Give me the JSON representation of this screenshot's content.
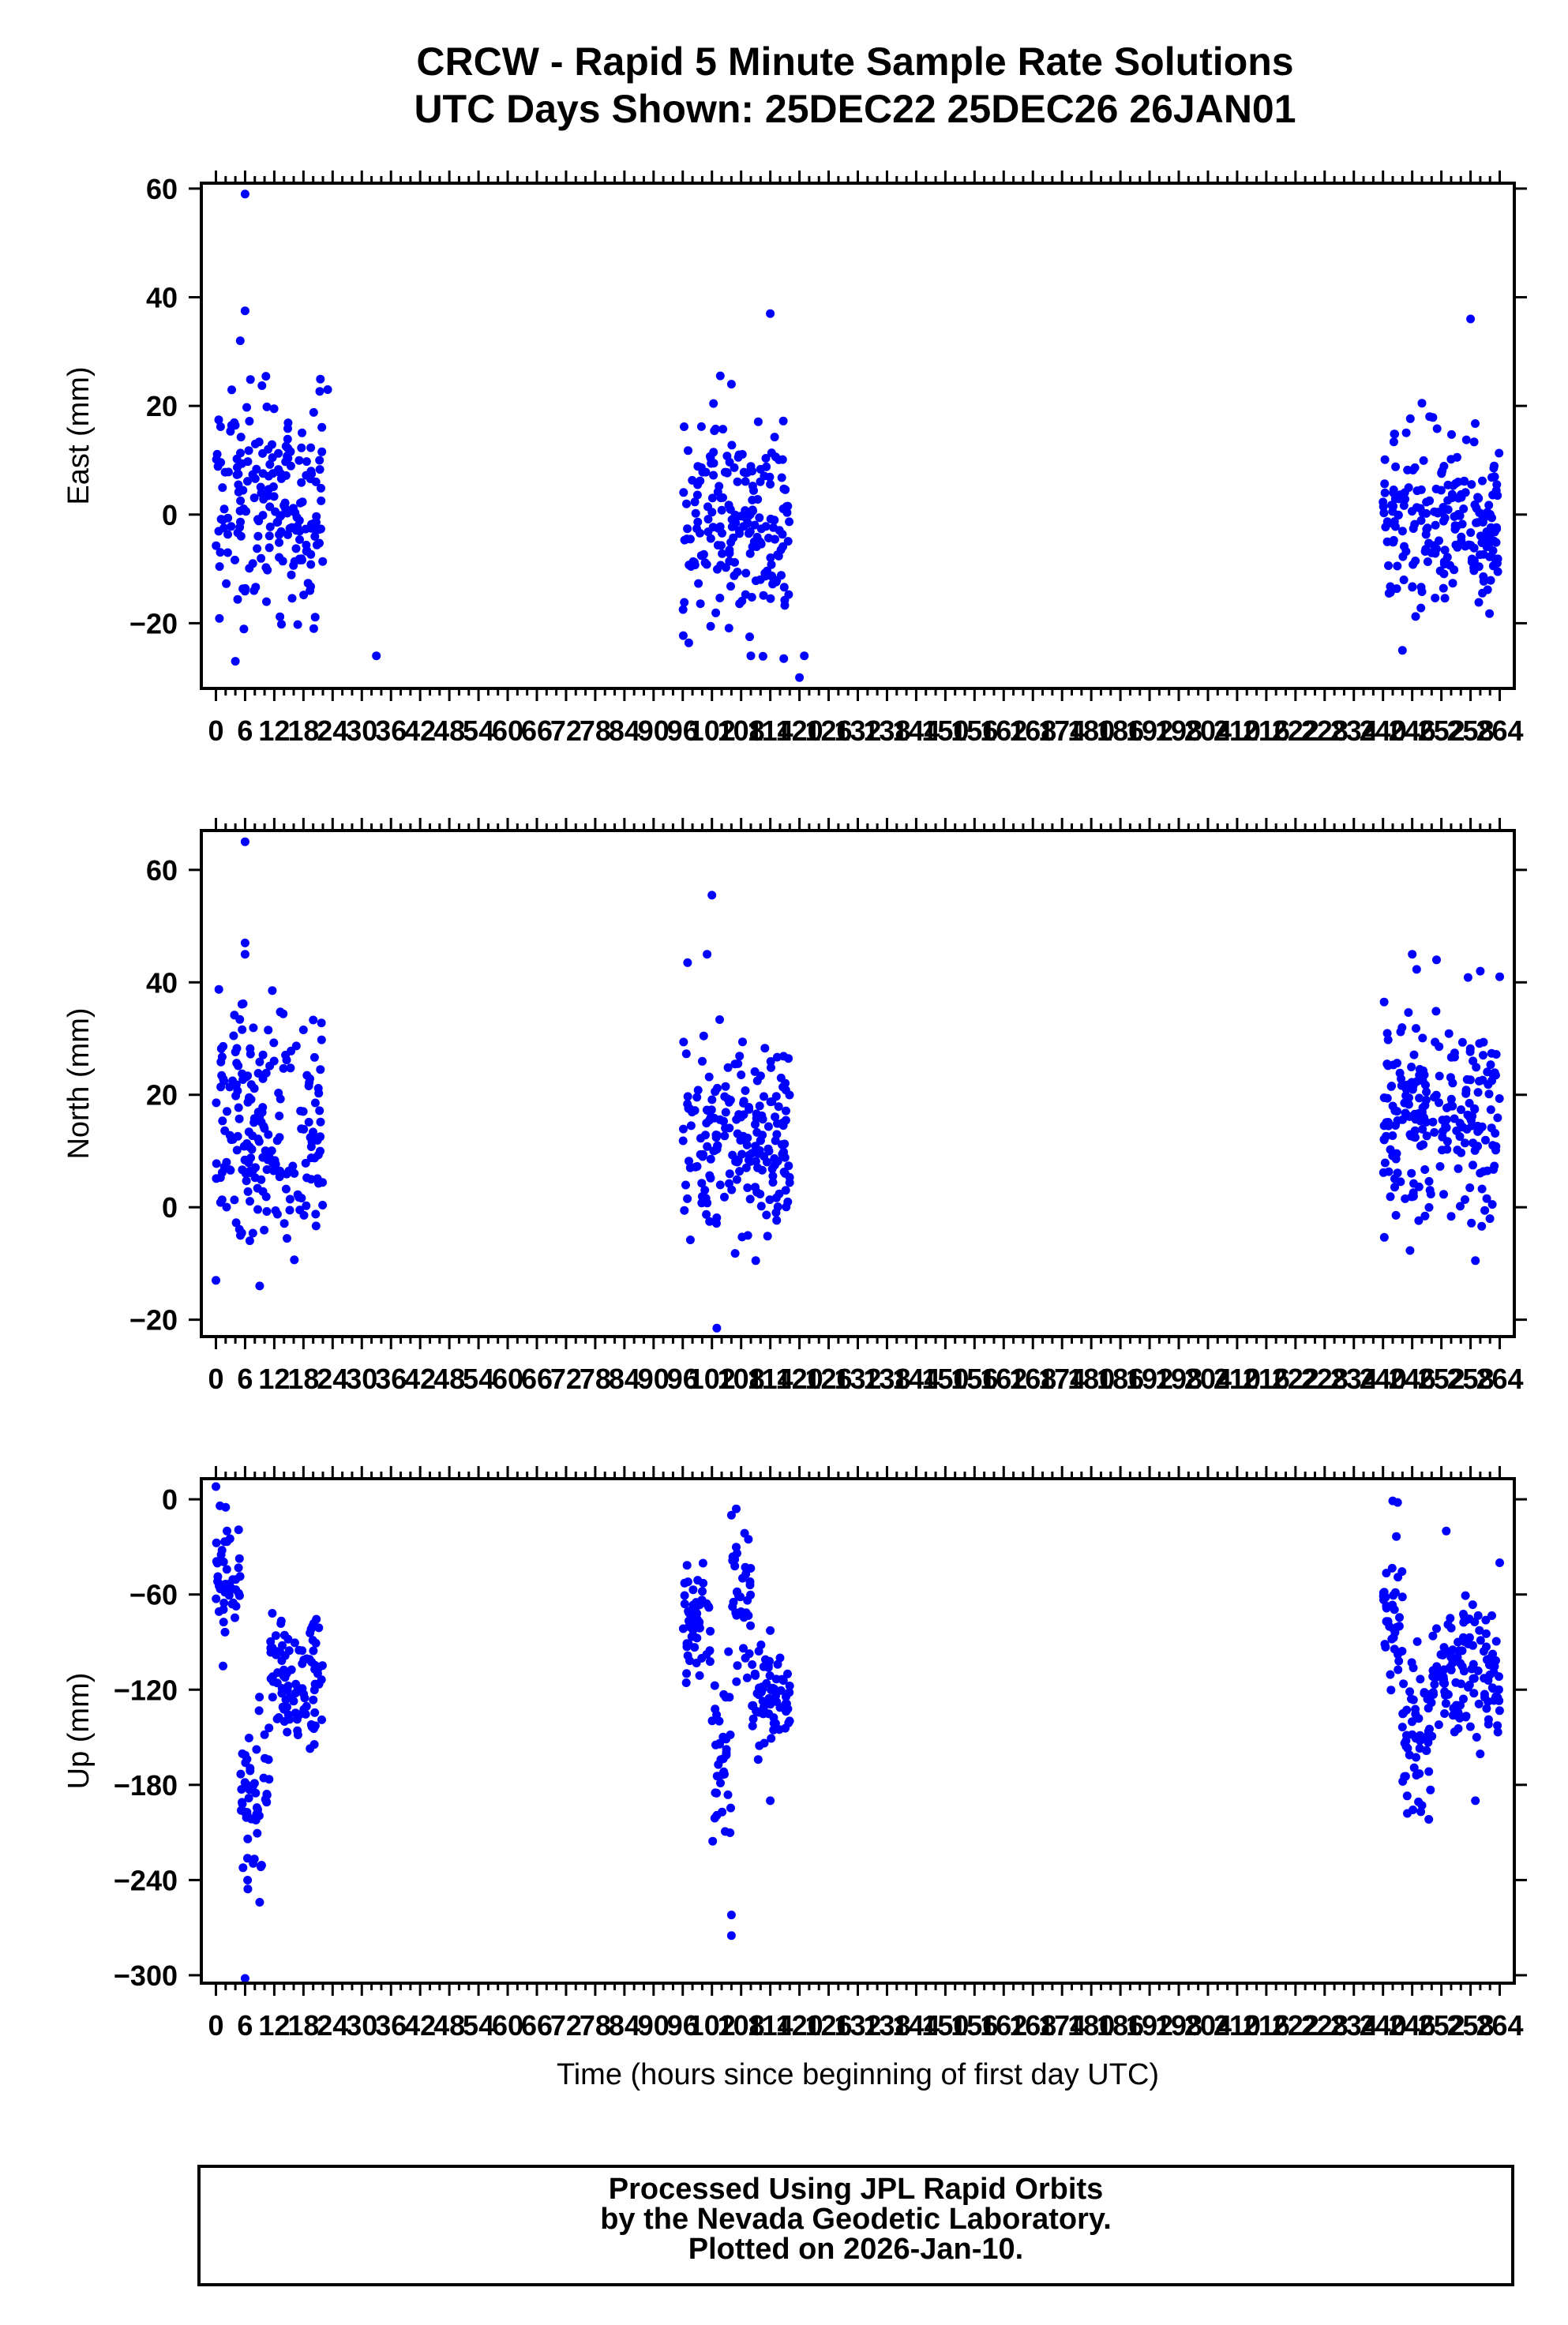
{
  "title": "CRCW - Rapid 5 Minute Sample Rate Solutions",
  "subtitle": "UTC Days Shown:  25DEC22 25DEC26 26JAN01",
  "colors": {
    "points": "#0000ff",
    "axes": "#000000"
  },
  "chart_data": [
    {
      "type": "scatter",
      "ylabel": "East (mm)",
      "xlabel": "",
      "xlim": [
        -3,
        267
      ],
      "ylim": [
        -32,
        61
      ],
      "yticks": [
        60,
        40,
        20,
        0,
        -20
      ],
      "xticks": [
        0,
        6,
        12,
        18,
        24,
        30,
        36,
        42,
        48,
        54,
        60,
        66,
        72,
        78,
        84,
        90,
        96,
        102,
        108,
        114,
        120,
        126,
        132,
        138,
        144,
        150,
        156,
        162,
        168,
        174,
        180,
        186,
        192,
        198,
        204,
        210,
        216,
        222,
        228,
        234,
        240,
        246,
        252,
        258,
        264
      ],
      "clusters": [
        {
          "x_range": [
            0,
            22
          ],
          "y_center": 2,
          "y_spread": 10
        },
        {
          "x_range": [
            96,
            118
          ],
          "y_center": -1,
          "y_spread": 10
        },
        {
          "x_range": [
            240,
            264
          ],
          "y_center": -2,
          "y_spread": 8
        }
      ],
      "outliers": [
        [
          6,
          59
        ],
        [
          6,
          37.5
        ],
        [
          5,
          32
        ],
        [
          114,
          37
        ],
        [
          258,
          36
        ],
        [
          23,
          23
        ],
        [
          33,
          -26
        ],
        [
          4,
          -27
        ],
        [
          120,
          -30
        ],
        [
          121,
          -26
        ],
        [
          110,
          -26
        ],
        [
          244,
          -25
        ],
        [
          248,
          20.5
        ],
        [
          106,
          24
        ]
      ]
    },
    {
      "type": "scatter",
      "ylabel": "North (mm)",
      "xlabel": "",
      "xlim": [
        -3,
        267
      ],
      "ylim": [
        -23,
        67
      ],
      "yticks": [
        60,
        40,
        20,
        0,
        -20
      ],
      "xticks": [
        0,
        6,
        12,
        18,
        24,
        30,
        36,
        42,
        48,
        54,
        60,
        66,
        72,
        78,
        84,
        90,
        96,
        102,
        108,
        114,
        120,
        126,
        132,
        138,
        144,
        150,
        156,
        162,
        168,
        174,
        180,
        186,
        192,
        198,
        204,
        210,
        216,
        222,
        228,
        234,
        240,
        246,
        252,
        258,
        264
      ],
      "clusters": [
        {
          "x_range": [
            0,
            22
          ],
          "y_center": 14,
          "y_spread": 10
        },
        {
          "x_range": [
            96,
            118
          ],
          "y_center": 13,
          "y_spread": 9
        },
        {
          "x_range": [
            240,
            264
          ],
          "y_center": 16,
          "y_spread": 9
        }
      ],
      "outliers": [
        [
          6,
          65
        ],
        [
          6,
          47
        ],
        [
          6,
          45
        ],
        [
          102,
          55.5
        ],
        [
          101,
          45
        ],
        [
          97,
          43.5
        ],
        [
          246,
          45
        ],
        [
          251,
          44
        ],
        [
          260,
          42
        ],
        [
          264,
          41
        ],
        [
          0,
          -13
        ],
        [
          9,
          -14
        ],
        [
          103,
          -21.5
        ],
        [
          111,
          -9.5
        ],
        [
          259,
          -9.5
        ]
      ]
    },
    {
      "type": "scatter",
      "ylabel": "Up (mm)",
      "xlabel": "Time (hours since beginning of first day UTC)",
      "xlim": [
        -3,
        267
      ],
      "ylim": [
        -305,
        13
      ],
      "yticks": [
        0,
        -60,
        -120,
        -180,
        -240,
        -300
      ],
      "xticks": [
        0,
        6,
        12,
        18,
        24,
        30,
        36,
        42,
        48,
        54,
        60,
        66,
        72,
        78,
        84,
        90,
        96,
        102,
        108,
        114,
        120,
        126,
        132,
        138,
        144,
        150,
        156,
        162,
        168,
        174,
        180,
        186,
        192,
        198,
        204,
        210,
        216,
        222,
        228,
        234,
        240,
        246,
        252,
        258,
        264
      ],
      "clusters": [
        {
          "x_range": [
            0,
            5
          ],
          "y_center": -55,
          "y_spread": 20
        },
        {
          "x_range": [
            5,
            11
          ],
          "y_center": -185,
          "y_spread": 25
        },
        {
          "x_range": [
            11,
            22
          ],
          "y_center": -110,
          "y_spread": 20
        },
        {
          "x_range": [
            96,
            102
          ],
          "y_center": -80,
          "y_spread": 20
        },
        {
          "x_range": [
            102,
            106
          ],
          "y_center": -170,
          "y_spread": 30
        },
        {
          "x_range": [
            106,
            110
          ],
          "y_center": -70,
          "y_spread": 25
        },
        {
          "x_range": [
            110,
            118
          ],
          "y_center": -125,
          "y_spread": 15
        },
        {
          "x_range": [
            240,
            244
          ],
          "y_center": -80,
          "y_spread": 20
        },
        {
          "x_range": [
            244,
            250
          ],
          "y_center": -140,
          "y_spread": 25
        },
        {
          "x_range": [
            250,
            264
          ],
          "y_center": -110,
          "y_spread": 22
        }
      ],
      "outliers": [
        [
          0,
          8
        ],
        [
          2,
          -5
        ],
        [
          6,
          -302
        ],
        [
          9,
          -254
        ],
        [
          106,
          -10
        ],
        [
          107,
          -6
        ],
        [
          106,
          -275
        ],
        [
          106,
          -262
        ],
        [
          114,
          -190
        ],
        [
          243,
          -2
        ],
        [
          242,
          -1
        ],
        [
          245,
          -198
        ],
        [
          248,
          -193
        ],
        [
          253,
          -20
        ],
        [
          259,
          -190
        ],
        [
          264,
          -40
        ]
      ]
    }
  ],
  "footer": {
    "line1": "Processed Using JPL Rapid Orbits",
    "line2": "by the Nevada Geodetic Laboratory.",
    "line3": "Plotted on 2026-Jan-10."
  }
}
